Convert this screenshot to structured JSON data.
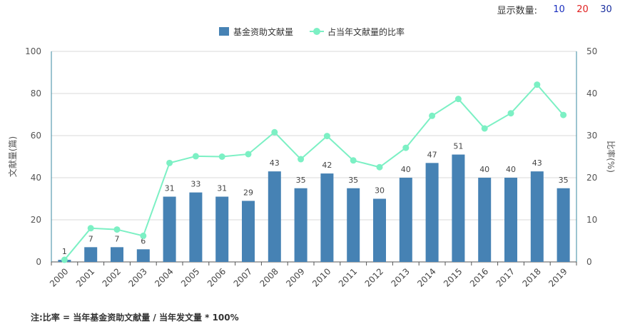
{
  "display_count": {
    "label": "显示数量:",
    "options": [
      "10",
      "20",
      "30"
    ]
  },
  "note": "注:比率 = 当年基金资助文献量 / 当年发文量 * 100%",
  "chart_data": {
    "type": "bar+line",
    "categories": [
      "2000",
      "2001",
      "2002",
      "2003",
      "2004",
      "2005",
      "2006",
      "2007",
      "2008",
      "2009",
      "2010",
      "2011",
      "2012",
      "2013",
      "2014",
      "2015",
      "2016",
      "2017",
      "2018",
      "2019"
    ],
    "series": [
      {
        "name": "基金资助文献量",
        "type": "bar",
        "axis": "left",
        "color": "#4682b4",
        "values": [
          1,
          7,
          7,
          6,
          31,
          33,
          31,
          29,
          43,
          35,
          42,
          35,
          30,
          40,
          47,
          51,
          40,
          40,
          43,
          35
        ]
      },
      {
        "name": "占当年文献量的比率",
        "type": "line",
        "axis": "right",
        "color": "#7cf0c4",
        "values": [
          0.5,
          8.0,
          7.7,
          6.2,
          23.5,
          25.1,
          25.0,
          25.6,
          30.8,
          24.4,
          29.9,
          24.1,
          22.5,
          27.1,
          34.7,
          38.7,
          31.7,
          35.3,
          42.1,
          34.9
        ]
      }
    ],
    "ylabel": "文献量(篇)",
    "y2label": "比率(%)",
    "ylim": [
      0,
      100
    ],
    "y2lim": [
      0,
      50
    ],
    "yticks": [
      "0",
      "20",
      "40",
      "60",
      "80",
      "100"
    ],
    "y2ticks": [
      "0",
      "10",
      "20",
      "30",
      "40",
      "50"
    ],
    "grid": true,
    "legend": "top-center"
  }
}
